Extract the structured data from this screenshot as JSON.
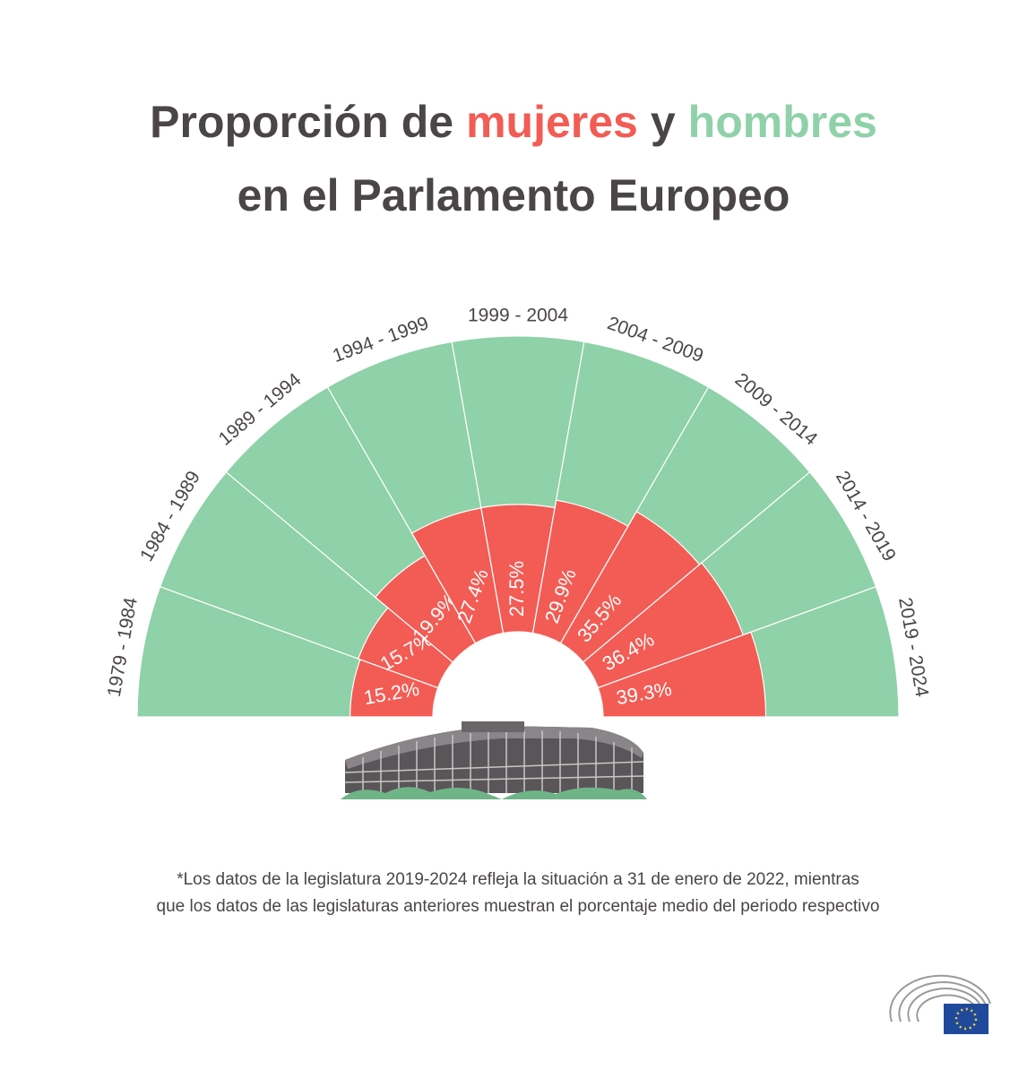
{
  "chart_data": {
    "type": "radial-bar",
    "title": {
      "parts": [
        "Proporción de",
        "mujeres",
        "y",
        "hombres"
      ],
      "line2": "en el Parlamento Europeo"
    },
    "title_colors": [
      "#4a4549",
      "#f25c54",
      "#4a4549",
      "#8fd1a8"
    ],
    "categories": [
      "1979 - 1984",
      "1984 - 1989",
      "1989 - 1994",
      "1994 - 1999",
      "1999 - 2004",
      "2004 - 2009",
      "2009 - 2014",
      "2014 - 2019",
      "2019 - 2024"
    ],
    "values": [
      15.2,
      15.7,
      19.9,
      27.4,
      27.5,
      29.9,
      35.5,
      36.4,
      39.3
    ],
    "value_labels": [
      "15.2%",
      "15.7%",
      "19.9%",
      "27.4%",
      "27.5%",
      "29.9%",
      "35.5%",
      "36.4%",
      "39.3%"
    ],
    "ylim": [
      0,
      100
    ],
    "color": "#f25c54",
    "rest_color": "#8fd1a8",
    "footnote": [
      "*Los datos de la legislatura 2019-2024 refleja la situación a 31 de enero de 2022, mientras",
      "que los datos de las legislaturas anteriores muestran el porcentaje medio del periodo respectivo"
    ]
  }
}
